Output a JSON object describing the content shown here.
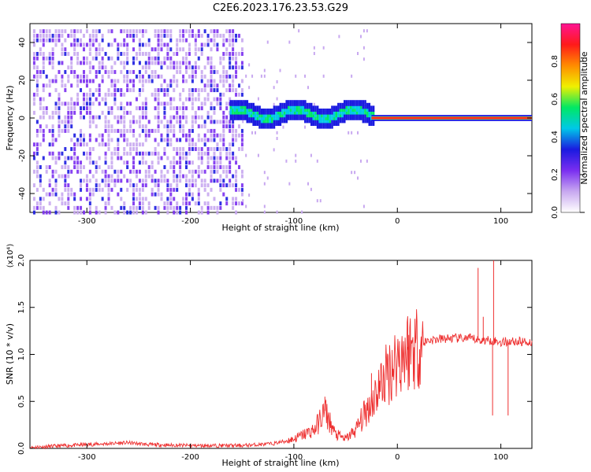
{
  "title": "C2E6.2023.176.23.53.G29",
  "chart_data": [
    {
      "type": "heatmap",
      "xlabel": "Height of straight line (km)",
      "ylabel": "Frequency (Hz)",
      "xlim": [
        -355,
        130
      ],
      "ylim": [
        -50,
        50
      ],
      "x_ticks": [
        -300,
        -200,
        -100,
        0,
        100
      ],
      "y_ticks": [
        -40,
        -20,
        0,
        20,
        40
      ],
      "colorbar": {
        "label": "Normalized spectral amplitude",
        "range": [
          0.0,
          1.0
        ],
        "ticks": [
          "0.0",
          "0.2",
          "0.4",
          "0.6",
          "0.8"
        ],
        "colors": [
          "#ffffff",
          "#c8a8f0",
          "#7a2ef0",
          "#1a1ae0",
          "#00c8e8",
          "#00e864",
          "#f0f000",
          "#ff8c00",
          "#ff1a1a",
          "#ff1493"
        ]
      },
      "features": [
        {
          "x": [
            -355,
            -150
          ],
          "frequency": [
            -50,
            50
          ],
          "amplitude": "noise 0.1-0.3"
        },
        {
          "x": [
            -160,
            -25
          ],
          "frequency": [
            -3,
            8
          ],
          "amplitude": "0.4-0.6"
        },
        {
          "x": [
            -25,
            130
          ],
          "frequency": [
            -1,
            1
          ],
          "amplitude": "0.8-1.0"
        }
      ]
    },
    {
      "type": "line",
      "xlabel": "Height of straight line (km)",
      "ylabel": "SNR (10 * v/v)",
      "y_multiplier": "(x10⁴)",
      "xlim": [
        -355,
        130
      ],
      "ylim": [
        0.0,
        2.0
      ],
      "x_ticks": [
        -300,
        -200,
        -100,
        0,
        100
      ],
      "y_ticks": [
        "0.0",
        "0.5",
        "1.0",
        "1.5",
        "2.0"
      ],
      "color": "#ee3030",
      "envelope": {
        "x": [
          -355,
          -320,
          -280,
          -260,
          -240,
          -200,
          -150,
          -120,
          -100,
          -80,
          -70,
          -60,
          -50,
          -40,
          -30,
          -20,
          -10,
          0,
          10,
          20,
          30,
          50,
          70,
          80,
          90,
          100,
          110,
          130
        ],
        "y": [
          0.01,
          0.03,
          0.05,
          0.06,
          0.04,
          0.03,
          0.03,
          0.05,
          0.1,
          0.2,
          0.4,
          0.15,
          0.1,
          0.2,
          0.4,
          0.6,
          0.8,
          0.95,
          1.05,
          1.1,
          1.15,
          1.17,
          1.17,
          1.15,
          1.15,
          1.13,
          1.14,
          1.13
        ]
      },
      "spikes": [
        {
          "x": 78,
          "y": 1.92
        },
        {
          "x": 83,
          "y": 1.4
        },
        {
          "x": 93,
          "y": 2.0
        },
        {
          "x": 92,
          "y": 0.35
        },
        {
          "x": 107,
          "y": 0.35
        },
        {
          "x": -70,
          "y": 0.55
        },
        {
          "x": -25,
          "y": 0.8
        },
        {
          "x": 10,
          "y": 1.08
        }
      ]
    }
  ]
}
